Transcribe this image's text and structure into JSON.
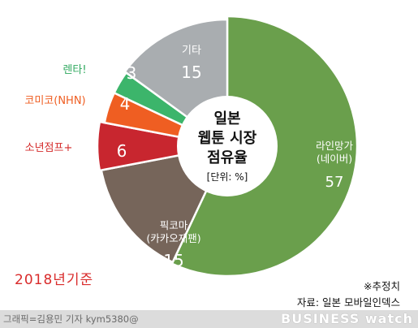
{
  "chart_data": {
    "type": "pie",
    "title_lines": [
      "일본",
      "웹툰 시장",
      "점유율"
    ],
    "unit": "[단위: %]",
    "slices": [
      {
        "name": "라인망가\n(네이버)",
        "value": 57,
        "color": "#6a9f4c",
        "label_color": "#ffffff"
      },
      {
        "name": "픽코마\n(카카오재팬)",
        "value": 15,
        "color": "#76655a",
        "label_color": "#ffffff"
      },
      {
        "name": "소년점프+",
        "value": 6,
        "color": "#c8262f",
        "label_color": "#d42a2a"
      },
      {
        "name": "코미코(NHN)",
        "value": 4,
        "color": "#ef5e22",
        "label_color": "#ef5e22"
      },
      {
        "name": "렌타!",
        "value": 3,
        "color": "#3cb56b",
        "label_color": "#2ea85e"
      },
      {
        "name": "기타",
        "value": 15,
        "color": "#a9adb0",
        "label_color": "#ffffff"
      }
    ]
  },
  "notes": {
    "year": "2018년기준",
    "estimate": "※추정치",
    "source": "자료: 일본 모바일인덱스"
  },
  "footer": {
    "credit": "그래픽=김용민 기자 kym5380@",
    "brand": "BUSINESS watch"
  }
}
